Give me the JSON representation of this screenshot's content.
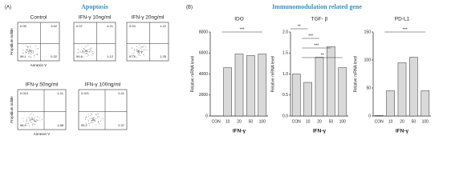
{
  "panel_a": {
    "label": "(A)",
    "title": "Apoptosis",
    "y_label": "Propidium iodide",
    "x_label": "Annexin V",
    "plots": [
      {
        "title": "Control",
        "quadrants": [
          "0.05",
          "3.52",
          "96.1",
          "0.32"
        ]
      },
      {
        "title": "IFN-γ 10ng/ml",
        "quadrants": [
          "0.07",
          "4.21",
          "94.6",
          "1.12"
        ]
      },
      {
        "title": "IFN-γ 20ng/ml",
        "quadrants": [
          "0.03",
          "1.22",
          "97.4",
          "1.35"
        ]
      },
      {
        "title": "IFN-γ 50ng/ml",
        "quadrants": [
          "0.010",
          "1.21",
          "96.9",
          "1.88"
        ]
      },
      {
        "title": "IFN-γ 100ng/ml",
        "quadrants": [
          "0.021",
          "2.41",
          "95.2",
          "2.37"
        ]
      }
    ]
  },
  "panel_b": {
    "label": "(B)",
    "title": "Immunomodulation related gene"
  },
  "chart_data": [
    {
      "type": "bar",
      "title": "IDO",
      "y_label": "Relative mRNA level",
      "x_label": "IFN-γ",
      "categories": [
        "CON",
        "10",
        "20",
        "50",
        "100"
      ],
      "values": [
        1,
        4600,
        5900,
        5750,
        5900
      ],
      "color": "#d9d9d9",
      "ylim": [
        0,
        8000
      ],
      "yticks": [
        0,
        2000,
        4000,
        6000,
        8000
      ],
      "annotations": [
        "***"
      ]
    },
    {
      "type": "bar",
      "title": "TGF- β",
      "y_label": "Relative mRNA level",
      "x_label": "IFN-γ",
      "categories": [
        "CON",
        "10",
        "20",
        "50",
        "100"
      ],
      "values": [
        1.0,
        0.8,
        1.4,
        1.65,
        1.15
      ],
      "color": "#d9d9d9",
      "ylim": [
        0,
        2
      ],
      "yticks": [
        {
          "value": 0,
          "label": "0.0"
        },
        {
          "value": 0.5,
          "label": "0.5"
        },
        {
          "value": 1,
          "label": "1.0"
        },
        {
          "value": 1.5,
          "label": "1.5"
        },
        {
          "value": 2,
          "label": "2.0"
        }
      ],
      "annotations": [
        "**",
        "***",
        "***",
        "**"
      ]
    },
    {
      "type": "bar",
      "title": "PD-L1",
      "y_label": "Relative mRNA level",
      "x_label": "IFN-γ",
      "categories": [
        "CON",
        "10",
        "20",
        "50",
        "100"
      ],
      "values": [
        1,
        45,
        95,
        105,
        45
      ],
      "color": "#d9d9d9",
      "ylim": [
        0,
        150
      ],
      "yticks": [
        0,
        50,
        100,
        150
      ],
      "annotations": [
        "***"
      ]
    }
  ]
}
